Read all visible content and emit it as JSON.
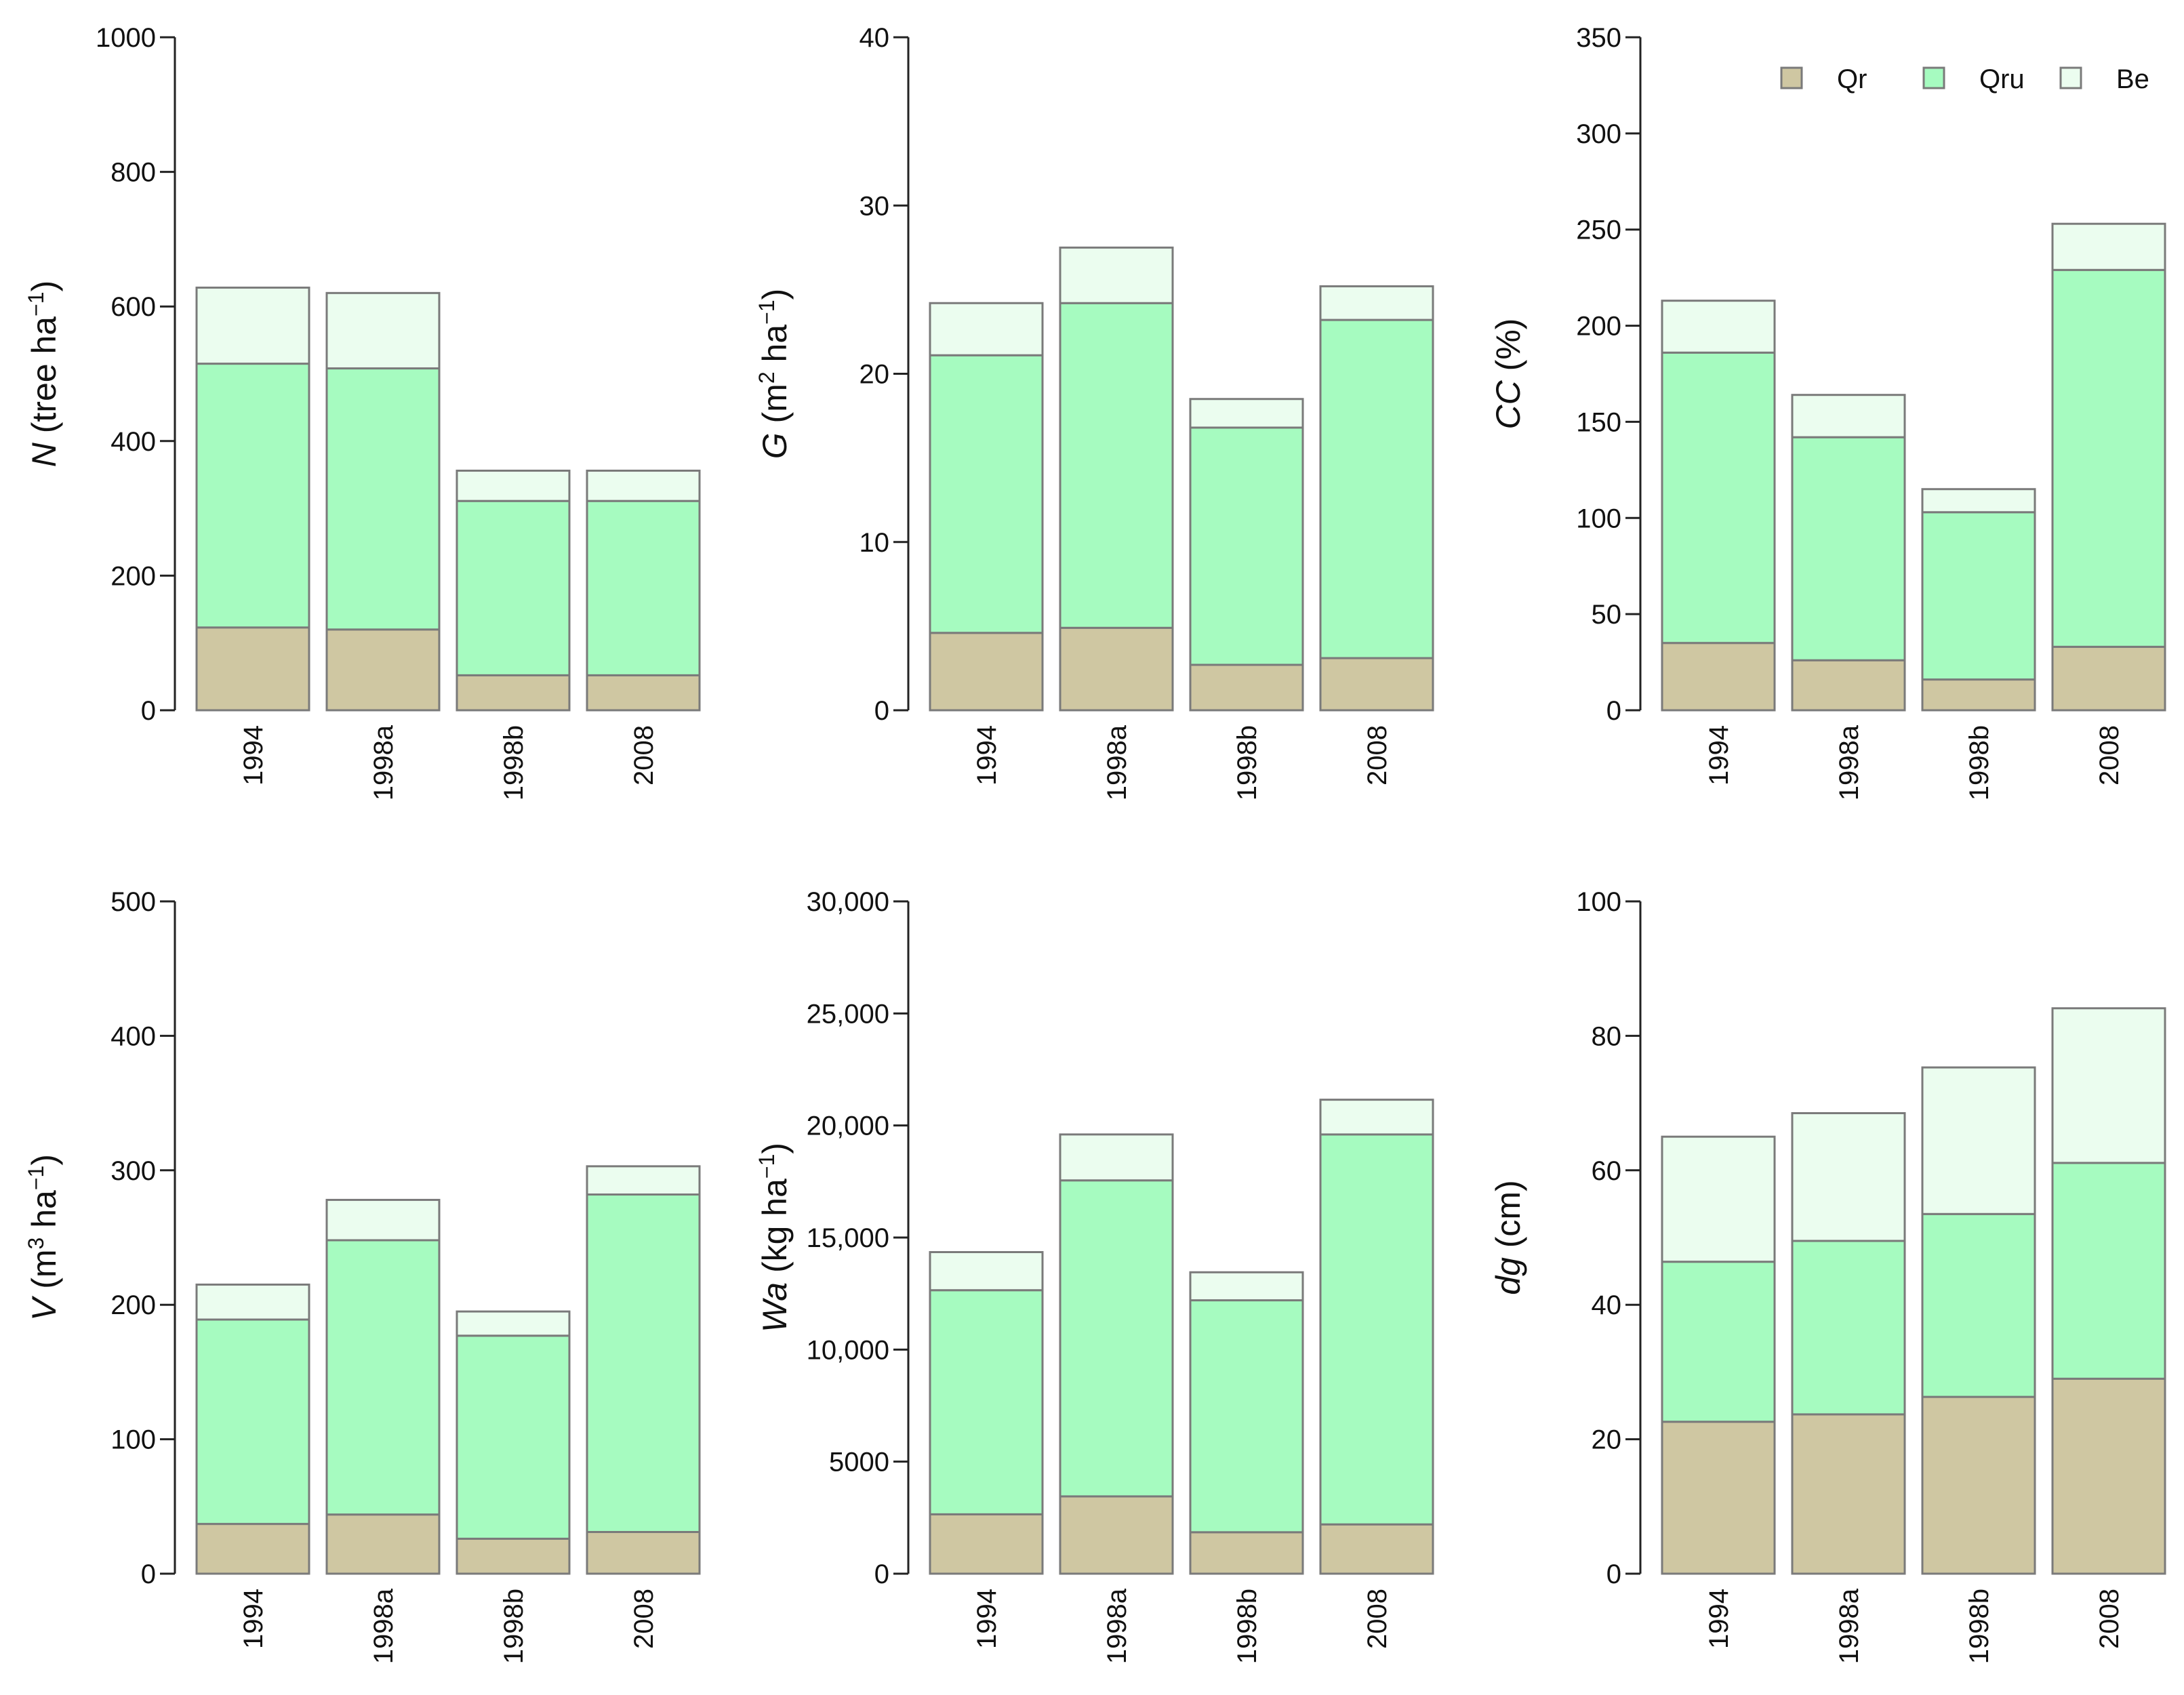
{
  "chart_data": [
    {
      "type": "bar",
      "stacked": true,
      "panel": "N",
      "ylabel": {
        "var": "N",
        "rest": "(tree ha",
        "sup": "−1",
        "close": ")"
      },
      "ylim": [
        0,
        1000
      ],
      "ticks": [
        0,
        200,
        400,
        600,
        800,
        1000
      ],
      "tick_labels": [
        "0",
        "200",
        "400",
        "600",
        "800",
        "1000"
      ],
      "categories": [
        "1994",
        "1998a",
        "1998b",
        "2008"
      ],
      "series": [
        {
          "name": "Qr",
          "values": [
            123,
            120,
            52,
            52
          ]
        },
        {
          "name": "Qru",
          "values": [
            392,
            388,
            259,
            259
          ]
        },
        {
          "name": "Be",
          "values": [
            113,
            112,
            45,
            45
          ]
        }
      ]
    },
    {
      "type": "bar",
      "stacked": true,
      "panel": "G",
      "ylabel": {
        "var": "G",
        "rest": "(m",
        "sup": "2",
        "rest2": " ha",
        "sup2": "−1",
        "close": ")"
      },
      "ylim": [
        0,
        40
      ],
      "ticks": [
        0,
        10,
        20,
        30,
        40
      ],
      "tick_labels": [
        "0",
        "10",
        "20",
        "30",
        "40"
      ],
      "categories": [
        "1994",
        "1998a",
        "1998b",
        "2008"
      ],
      "series": [
        {
          "name": "Qr",
          "values": [
            4.6,
            4.9,
            2.7,
            3.1
          ]
        },
        {
          "name": "Qru",
          "values": [
            16.5,
            19.3,
            14.1,
            20.1
          ]
        },
        {
          "name": "Be",
          "values": [
            3.1,
            3.3,
            1.7,
            2.0
          ]
        }
      ]
    },
    {
      "type": "bar",
      "stacked": true,
      "panel": "CC",
      "ylabel": {
        "var": "CC",
        "rest": "(%)"
      },
      "ylim": [
        0,
        350
      ],
      "ticks": [
        0,
        50,
        100,
        150,
        200,
        250,
        300,
        350
      ],
      "tick_labels": [
        "0",
        "50",
        "100",
        "150",
        "200",
        "250",
        "300",
        "350"
      ],
      "categories": [
        "1994",
        "1998a",
        "1998b",
        "2008"
      ],
      "series": [
        {
          "name": "Qr",
          "values": [
            35,
            26,
            16,
            33
          ]
        },
        {
          "name": "Qru",
          "values": [
            151,
            116,
            87,
            196
          ]
        },
        {
          "name": "Be",
          "values": [
            27,
            22,
            12,
            24
          ]
        }
      ],
      "legend": {
        "position": "top-right",
        "entries": [
          "Qr",
          "Qru",
          "Be"
        ]
      }
    },
    {
      "type": "bar",
      "stacked": true,
      "panel": "V",
      "ylabel": {
        "var": "V",
        "rest": "(m",
        "sup": "3",
        "rest2": " ha",
        "sup2": "−1",
        "close": ")"
      },
      "ylim": [
        0,
        500
      ],
      "ticks": [
        0,
        100,
        200,
        300,
        400,
        500
      ],
      "tick_labels": [
        "0",
        "100",
        "200",
        "300",
        "400",
        "500"
      ],
      "categories": [
        "1994",
        "1998a",
        "1998b",
        "2008"
      ],
      "series": [
        {
          "name": "Qr",
          "values": [
            37,
            44,
            26,
            31
          ]
        },
        {
          "name": "Qru",
          "values": [
            152,
            204,
            151,
            251
          ]
        },
        {
          "name": "Be",
          "values": [
            26,
            30,
            18,
            21
          ]
        }
      ]
    },
    {
      "type": "bar",
      "stacked": true,
      "panel": "Wa",
      "ylabel": {
        "var": "Wa",
        "rest": "(kg ha",
        "sup": "−1",
        "close": ")"
      },
      "ylim": [
        0,
        30000
      ],
      "ticks": [
        0,
        5000,
        10000,
        15000,
        20000,
        25000,
        30000
      ],
      "tick_labels": [
        "0",
        "5000",
        "10,000",
        "15,000",
        "20,000",
        "25,000",
        "30,000"
      ],
      "categories": [
        "1994",
        "1998a",
        "1998b",
        "2008"
      ],
      "series": [
        {
          "name": "Qr",
          "values": [
            2650,
            3450,
            1850,
            2200
          ]
        },
        {
          "name": "Qru",
          "values": [
            10000,
            14100,
            10350,
            17400
          ]
        },
        {
          "name": "Be",
          "values": [
            1700,
            2050,
            1250,
            1550
          ]
        }
      ]
    },
    {
      "type": "bar",
      "stacked": true,
      "panel": "dg",
      "ylabel": {
        "var": "dg",
        "rest": "(cm)"
      },
      "ylim": [
        0,
        100
      ],
      "ticks": [
        0,
        20,
        40,
        60,
        80,
        100
      ],
      "tick_labels": [
        "0",
        "20",
        "40",
        "60",
        "80",
        "100"
      ],
      "categories": [
        "1994",
        "1998a",
        "1998b",
        "2008"
      ],
      "series": [
        {
          "name": "Qr",
          "values": [
            22.6,
            23.7,
            26.3,
            29.0
          ]
        },
        {
          "name": "Qru",
          "values": [
            23.8,
            25.8,
            27.2,
            32.1
          ]
        },
        {
          "name": "Be",
          "values": [
            18.6,
            19.0,
            21.8,
            23.0
          ]
        }
      ]
    }
  ],
  "colors": {
    "Qr": "#cfc7a2",
    "Qru": "#a6fbc0",
    "Be": "#ebfdef",
    "axis": "#222222",
    "bar_border": "#7a7a7a"
  }
}
